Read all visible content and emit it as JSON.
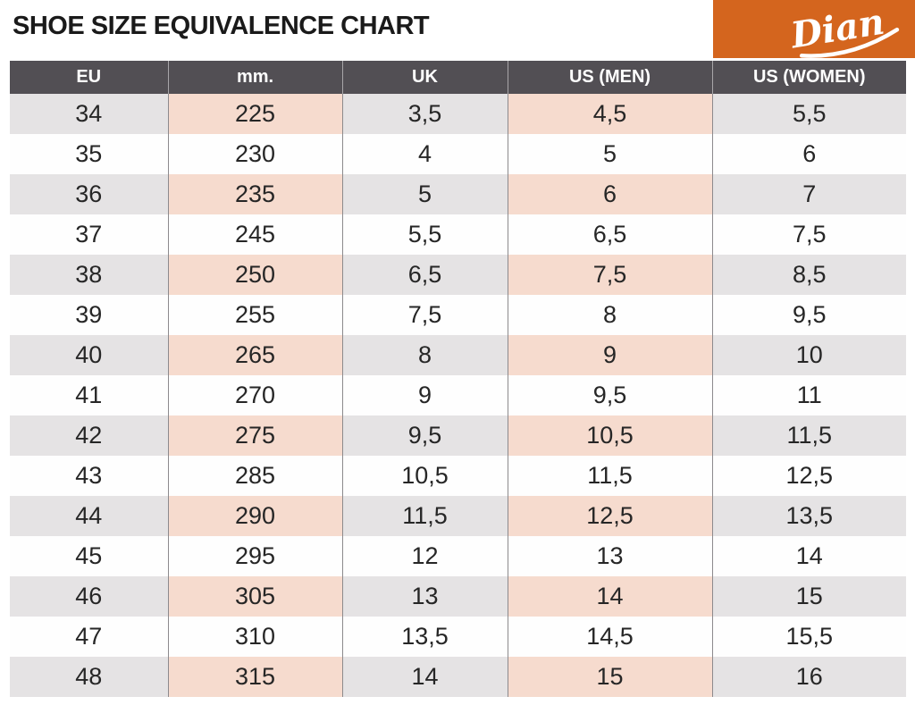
{
  "title": "SHOE SIZE EQUIVALENCE CHART",
  "logo": {
    "text": "Dian"
  },
  "colors": {
    "logo_orange": "#d4651e",
    "header_bg": "#524f54",
    "row_gray": "#e5e3e4",
    "row_pink": "#f6dbce",
    "cell_border": "#8c8a8d",
    "header_border": "#a8a6a9",
    "text_dark": "#262626",
    "title_color": "#1a1a1a"
  },
  "chart_data": {
    "type": "table",
    "title": "SHOE SIZE EQUIVALENCE CHART",
    "columns": [
      {
        "key": "eu",
        "label": "EU",
        "accent": false
      },
      {
        "key": "mm",
        "label": "mm.",
        "accent": true
      },
      {
        "key": "uk",
        "label": "UK",
        "accent": false
      },
      {
        "key": "us_men",
        "label": "US (MEN)",
        "accent": true
      },
      {
        "key": "us_women",
        "label": "US (WOMEN)",
        "accent": false
      }
    ],
    "rows": [
      {
        "eu": "34",
        "mm": "225",
        "uk": "3,5",
        "us_men": "4,5",
        "us_women": "5,5"
      },
      {
        "eu": "35",
        "mm": "230",
        "uk": "4",
        "us_men": "5",
        "us_women": "6"
      },
      {
        "eu": "36",
        "mm": "235",
        "uk": "5",
        "us_men": "6",
        "us_women": "7"
      },
      {
        "eu": "37",
        "mm": "245",
        "uk": "5,5",
        "us_men": "6,5",
        "us_women": "7,5"
      },
      {
        "eu": "38",
        "mm": "250",
        "uk": "6,5",
        "us_men": "7,5",
        "us_women": "8,5"
      },
      {
        "eu": "39",
        "mm": "255",
        "uk": "7,5",
        "us_men": "8",
        "us_women": "9,5"
      },
      {
        "eu": "40",
        "mm": "265",
        "uk": "8",
        "us_men": "9",
        "us_women": "10"
      },
      {
        "eu": "41",
        "mm": "270",
        "uk": "9",
        "us_men": "9,5",
        "us_women": "11"
      },
      {
        "eu": "42",
        "mm": "275",
        "uk": "9,5",
        "us_men": "10,5",
        "us_women": "11,5"
      },
      {
        "eu": "43",
        "mm": "285",
        "uk": "10,5",
        "us_men": "11,5",
        "us_women": "12,5"
      },
      {
        "eu": "44",
        "mm": "290",
        "uk": "11,5",
        "us_men": "12,5",
        "us_women": "13,5"
      },
      {
        "eu": "45",
        "mm": "295",
        "uk": "12",
        "us_men": "13",
        "us_women": "14"
      },
      {
        "eu": "46",
        "mm": "305",
        "uk": "13",
        "us_men": "14",
        "us_women": "15"
      },
      {
        "eu": "47",
        "mm": "310",
        "uk": "13,5",
        "us_men": "14,5",
        "us_women": "15,5"
      },
      {
        "eu": "48",
        "mm": "315",
        "uk": "14",
        "us_men": "15",
        "us_women": "16"
      }
    ]
  }
}
